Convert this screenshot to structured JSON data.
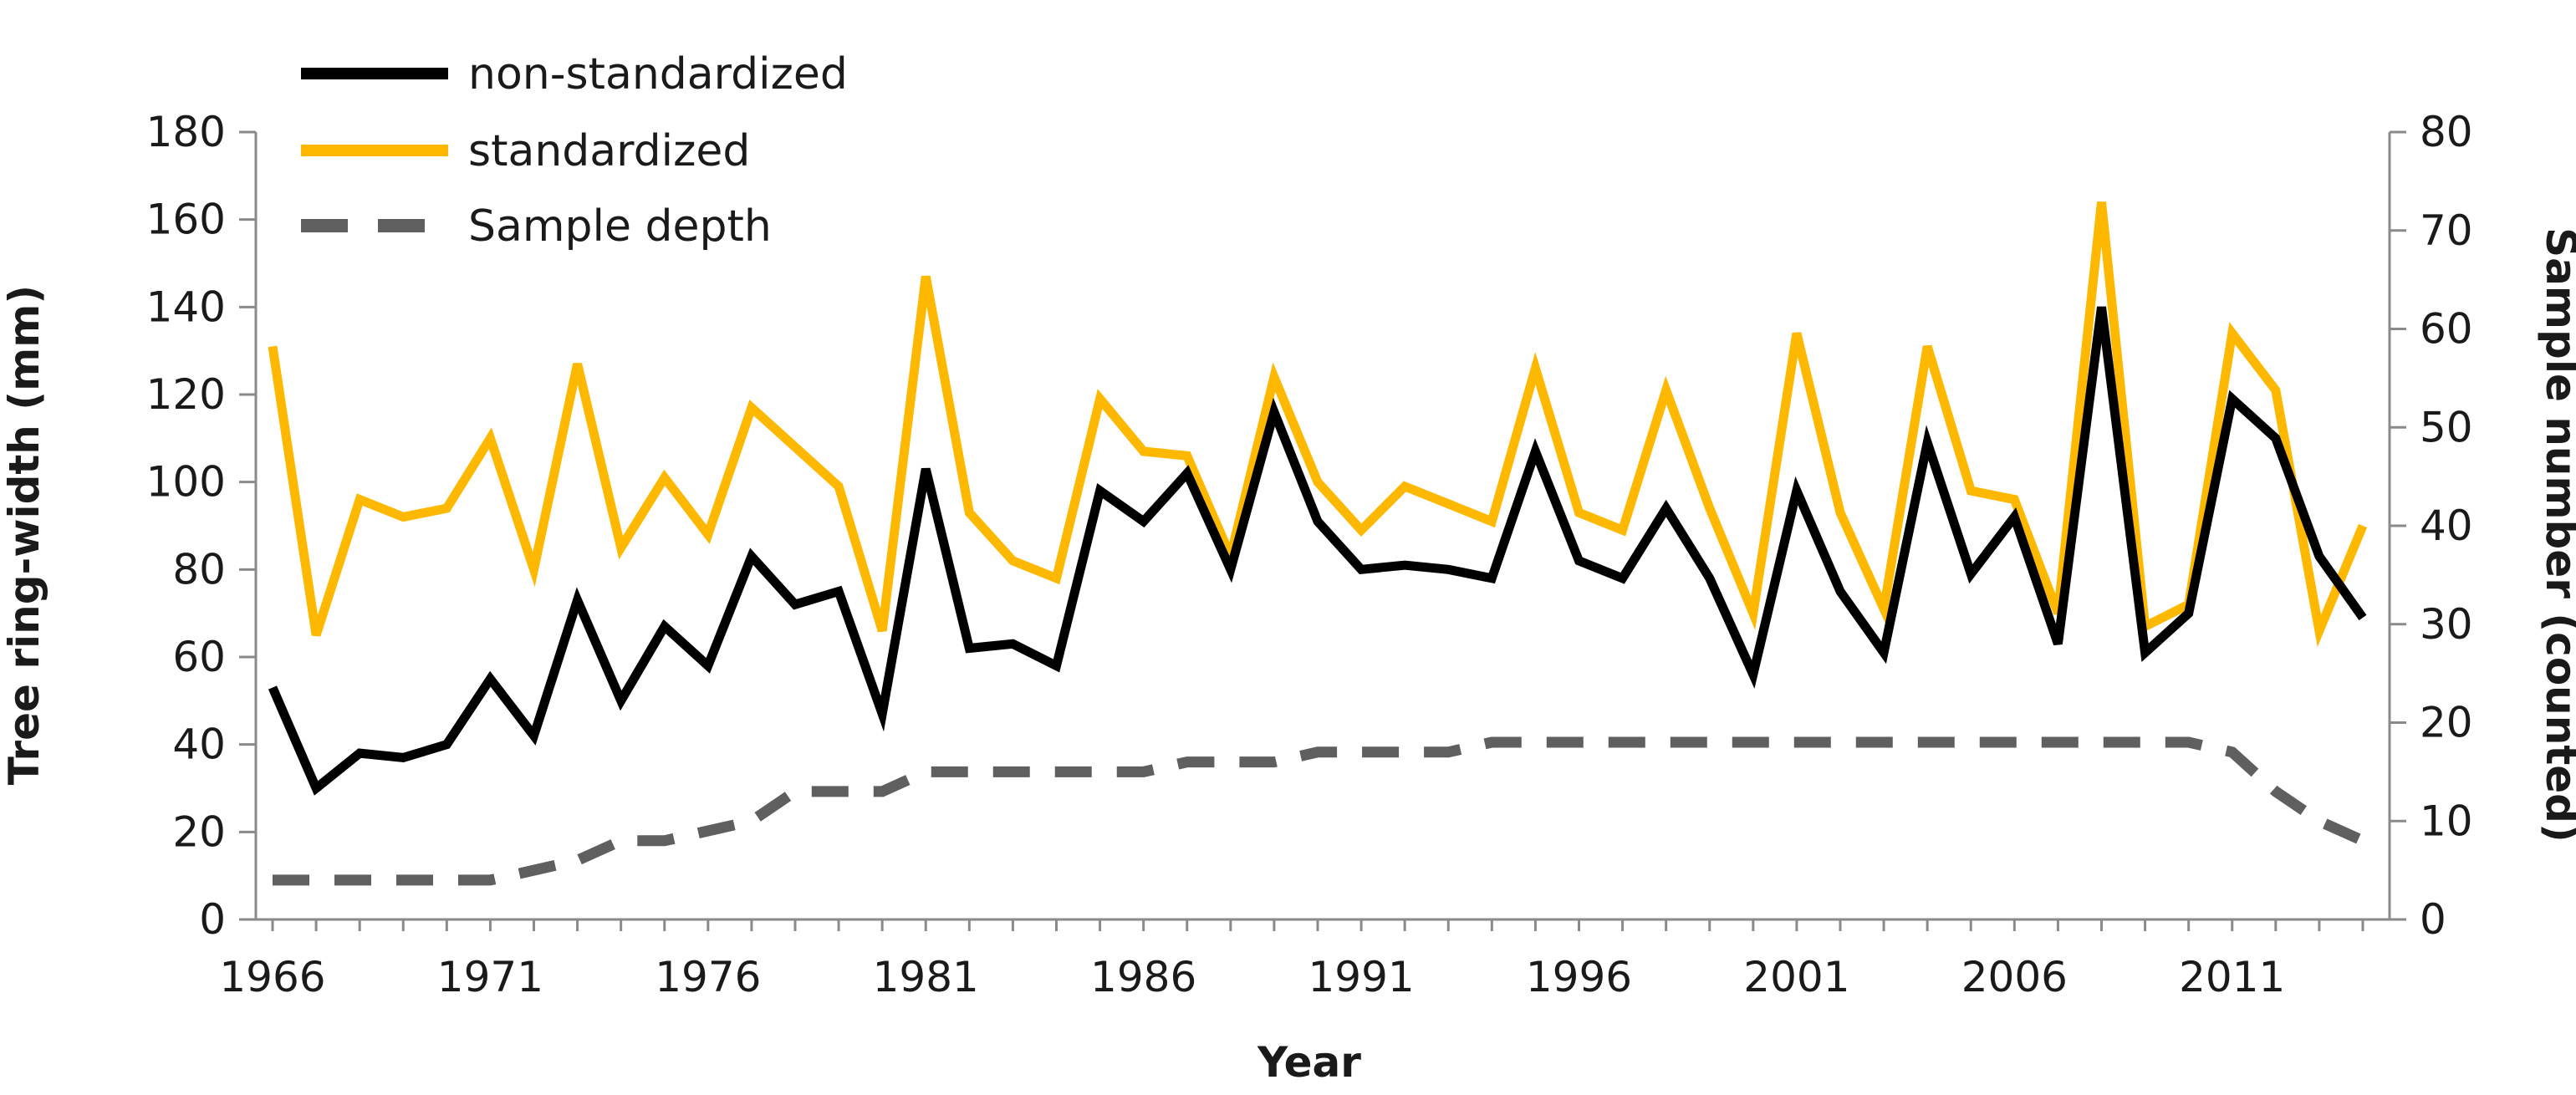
{
  "chart_data": {
    "type": "line",
    "title": "",
    "xlabel": "Year",
    "ylabel_left": "Tree ring-width (mm)",
    "ylabel_right": "Sample number (counted)",
    "xlim": [
      1966,
      2014
    ],
    "ylim_left": [
      0,
      180
    ],
    "ylim_right": [
      0,
      80
    ],
    "grid": false,
    "legend_position": "top-left",
    "x_tick_labels": [
      "1966",
      "1971",
      "1976",
      "1981",
      "1986",
      "1991",
      "1996",
      "2001",
      "2006",
      "2011"
    ],
    "y_left_tick_labels": [
      "0",
      "20",
      "40",
      "60",
      "80",
      "100",
      "120",
      "140",
      "160",
      "180"
    ],
    "y_right_tick_labels": [
      "0",
      "10",
      "20",
      "30",
      "40",
      "50",
      "60",
      "70",
      "80"
    ],
    "x": [
      1966,
      1967,
      1968,
      1969,
      1970,
      1971,
      1972,
      1973,
      1974,
      1975,
      1976,
      1977,
      1978,
      1979,
      1980,
      1981,
      1982,
      1983,
      1984,
      1985,
      1986,
      1987,
      1988,
      1989,
      1990,
      1991,
      1992,
      1993,
      1994,
      1995,
      1996,
      1997,
      1998,
      1999,
      2000,
      2001,
      2002,
      2003,
      2004,
      2005,
      2006,
      2007,
      2008,
      2009,
      2010,
      2011,
      2012,
      2013,
      2014
    ],
    "series": [
      {
        "name": "non-standardized",
        "axis": "left",
        "color": "#000000",
        "style": "solid",
        "values": [
          53,
          30,
          38,
          37,
          40,
          55,
          42,
          73,
          50,
          67,
          58,
          83,
          72,
          75,
          47,
          103,
          62,
          63,
          58,
          98,
          91,
          102,
          80,
          116,
          91,
          80,
          81,
          80,
          78,
          107,
          82,
          78,
          94,
          78,
          56,
          98,
          75,
          61,
          109,
          79,
          92,
          63,
          140,
          61,
          70,
          119,
          110,
          83,
          69
        ]
      },
      {
        "name": "standardized",
        "axis": "left",
        "color": "#FFB800",
        "style": "solid",
        "values": [
          131,
          65,
          96,
          92,
          94,
          110,
          80,
          127,
          85,
          101,
          88,
          117,
          108,
          99,
          66,
          147,
          93,
          82,
          78,
          119,
          107,
          106,
          83,
          124,
          100,
          89,
          99,
          95,
          91,
          126,
          93,
          89,
          121,
          94,
          70,
          134,
          93,
          71,
          131,
          98,
          96,
          70,
          164,
          67,
          72,
          134,
          121,
          66,
          90
        ]
      },
      {
        "name": "Sample depth",
        "axis": "right",
        "color": "#5f5f5f",
        "style": "dashed",
        "values": [
          4,
          4,
          4,
          4,
          4,
          4,
          5,
          6,
          8,
          8,
          9,
          10,
          13,
          13,
          13,
          15,
          15,
          15,
          15,
          15,
          15,
          16,
          16,
          16,
          17,
          17,
          17,
          17,
          18,
          18,
          18,
          18,
          18,
          18,
          18,
          18,
          18,
          18,
          18,
          18,
          18,
          18,
          18,
          18,
          18,
          17,
          13,
          10,
          8
        ]
      }
    ]
  }
}
